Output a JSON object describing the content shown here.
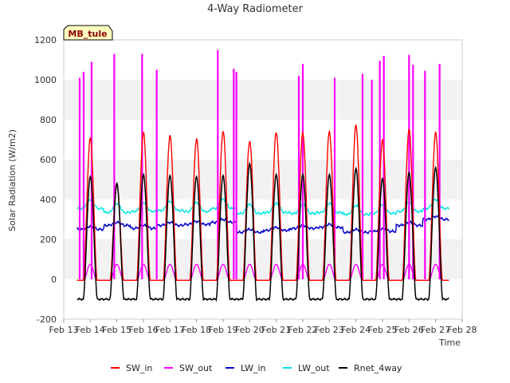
{
  "chart_data": {
    "type": "line",
    "title": "4-Way Radiometer",
    "xlabel": "Time",
    "ylabel": "Solar Radiation (W/m2)",
    "ylim": [
      -200,
      1200
    ],
    "xlim": [
      13,
      28
    ],
    "yticks": [
      -200,
      0,
      200,
      400,
      600,
      800,
      1000,
      1200
    ],
    "xticks": [
      13,
      14,
      15,
      16,
      17,
      18,
      19,
      20,
      21,
      22,
      23,
      24,
      25,
      26,
      27,
      28
    ],
    "xtick_labels": [
      "Feb 13",
      "Feb 14",
      "Feb 15",
      "Feb 16",
      "Feb 17",
      "Feb 18",
      "Feb 19",
      "Feb 20",
      "Feb 21",
      "Feb 22",
      "Feb 23",
      "Feb 24",
      "Feb 25",
      "Feb 26",
      "Feb 27",
      "Feb 28"
    ],
    "badge": "MB_tule",
    "grid": "horizontal bands",
    "legend_position": "bottom",
    "series": [
      {
        "name": "SW_in",
        "color": "#ff0000",
        "daily_peaks": [
          710,
          480,
          740,
          725,
          710,
          750,
          700,
          745,
          740,
          745,
          775,
          700,
          755,
          740
        ]
      },
      {
        "name": "SW_out",
        "color": "#ff00ff",
        "spikes": [
          [
            13.6,
            1010
          ],
          [
            13.75,
            1040
          ],
          [
            14.05,
            1090
          ],
          [
            14.9,
            1130
          ],
          [
            15.95,
            1130
          ],
          [
            16.5,
            1050
          ],
          [
            18.8,
            1150
          ],
          [
            19.4,
            1055
          ],
          [
            19.5,
            1040
          ],
          [
            21.85,
            1020
          ],
          [
            22.0,
            1080
          ],
          [
            23.2,
            1010
          ],
          [
            24.25,
            1030
          ],
          [
            24.6,
            1000
          ],
          [
            24.9,
            1095
          ],
          [
            25.05,
            1120
          ],
          [
            26.0,
            1125
          ],
          [
            26.15,
            1075
          ],
          [
            26.6,
            1045
          ],
          [
            27.15,
            1080
          ]
        ]
      },
      {
        "name": "LW_in",
        "color": "#0000cc",
        "baseline": [
          250,
          270,
          255,
          270,
          275,
          285,
          235,
          245,
          255,
          260,
          235,
          240,
          270,
          300,
          340
        ]
      },
      {
        "name": "LW_out",
        "color": "#00e5e5",
        "baseline": [
          355,
          335,
          340,
          345,
          340,
          355,
          330,
          335,
          330,
          335,
          325,
          330,
          340,
          355,
          350
        ]
      },
      {
        "name": "Rnet_4way",
        "color": "#000000",
        "daily_peaks": [
          515,
          480,
          525,
          520,
          515,
          520,
          580,
          525,
          525,
          525,
          555,
          505,
          535,
          560
        ],
        "night_value": -100
      }
    ]
  }
}
